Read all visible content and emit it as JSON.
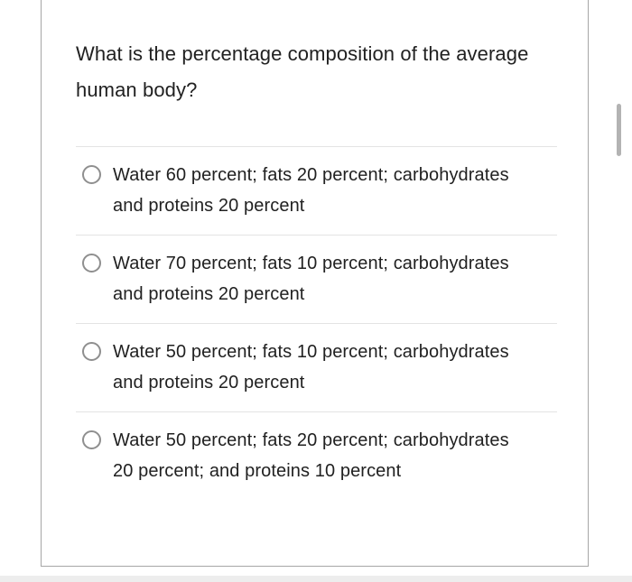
{
  "question": {
    "text": "What is the percentage composition of the average human body?"
  },
  "options": [
    {
      "label": "Water 60 percent; fats 20 percent; carbohydrates and proteins 20 percent",
      "selected": false
    },
    {
      "label": "Water 70 percent; fats 10 percent; carbohydrates and proteins 20 percent",
      "selected": false
    },
    {
      "label": "Water 50 percent; fats 10 percent; carbohydrates and proteins 20 percent",
      "selected": false
    },
    {
      "label": "Water 50 percent; fats 20 percent; carbohydrates 20 percent; and proteins 10 percent",
      "selected": false
    }
  ],
  "colors": {
    "text": "#212121",
    "card_border": "#a6a6a6",
    "divider": "#e3e3e3",
    "radio_border": "#8f8f8f",
    "scrollbar_thumb": "#b3b3b3"
  }
}
